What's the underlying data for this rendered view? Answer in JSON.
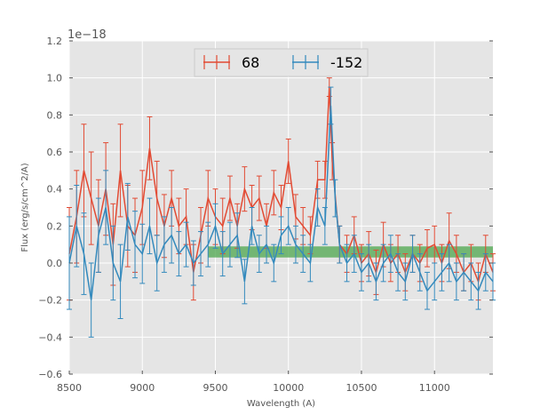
{
  "chart_data": {
    "type": "line",
    "title": "",
    "xlabel": "Wavelength (A)",
    "ylabel": "Flux (erg/s/cm^2/A)",
    "y_offset_label": "1e−18",
    "xlim": [
      8500,
      11400
    ],
    "ylim": [
      -0.6,
      1.2
    ],
    "xticks": [
      8500,
      9000,
      9500,
      10000,
      10500,
      11000
    ],
    "xtick_labels": [
      "8500",
      "9000",
      "9500",
      "10000",
      "10500",
      "11000"
    ],
    "yticks": [
      -0.6,
      -0.4,
      -0.2,
      0.0,
      0.2,
      0.4,
      0.6,
      0.8,
      1.0,
      1.2
    ],
    "ytick_labels": [
      "−0.6",
      "−0.4",
      "−0.2",
      "0.0",
      "0.2",
      "0.4",
      "0.6",
      "0.8",
      "1.0",
      "1.2"
    ],
    "grid": true,
    "legend_position": "top-center",
    "band": {
      "x_start": 9450,
      "x_end": 11400,
      "y_low": 0.03,
      "y_high": 0.09,
      "color": "#4ca64c"
    },
    "series": [
      {
        "name": "68",
        "color": "#e24a33",
        "x": [
          8500,
          8550,
          8600,
          8650,
          8700,
          8750,
          8800,
          8850,
          8900,
          8950,
          9000,
          9050,
          9100,
          9150,
          9200,
          9250,
          9300,
          9350,
          9400,
          9450,
          9500,
          9550,
          9600,
          9650,
          9700,
          9750,
          9800,
          9850,
          9900,
          9950,
          10000,
          10050,
          10100,
          10150,
          10200,
          10250,
          10280,
          10300,
          10350,
          10400,
          10450,
          10500,
          10550,
          10600,
          10650,
          10700,
          10750,
          10800,
          10850,
          10900,
          10950,
          11000,
          11050,
          11100,
          11150,
          11200,
          11250,
          11300,
          11350,
          11400
        ],
        "y": [
          0.05,
          0.25,
          0.5,
          0.35,
          0.2,
          0.4,
          0.1,
          0.5,
          0.2,
          0.15,
          0.3,
          0.62,
          0.35,
          0.2,
          0.35,
          0.2,
          0.25,
          -0.05,
          0.15,
          0.35,
          0.25,
          0.2,
          0.35,
          0.2,
          0.4,
          0.3,
          0.35,
          0.2,
          0.38,
          0.3,
          0.55,
          0.25,
          0.2,
          0.15,
          0.45,
          0.45,
          0.95,
          0.55,
          0.1,
          0.05,
          0.15,
          0.0,
          0.05,
          -0.05,
          0.1,
          0.0,
          0.05,
          -0.05,
          0.05,
          0.0,
          0.08,
          0.1,
          0.0,
          0.12,
          0.05,
          -0.05,
          0.0,
          -0.1,
          0.05,
          -0.05
        ],
        "err": [
          0.25,
          0.25,
          0.25,
          0.25,
          0.25,
          0.25,
          0.22,
          0.25,
          0.22,
          0.2,
          0.2,
          0.17,
          0.2,
          0.17,
          0.15,
          0.15,
          0.15,
          0.15,
          0.15,
          0.15,
          0.15,
          0.15,
          0.12,
          0.12,
          0.12,
          0.12,
          0.12,
          0.12,
          0.12,
          0.12,
          0.12,
          0.12,
          0.1,
          0.1,
          0.1,
          0.1,
          0.05,
          0.1,
          0.1,
          0.1,
          0.1,
          0.1,
          0.12,
          0.12,
          0.12,
          0.1,
          0.1,
          0.1,
          0.1,
          0.1,
          0.1,
          0.1,
          0.1,
          0.15,
          0.1,
          0.1,
          0.1,
          0.1,
          0.1,
          0.1
        ]
      },
      {
        "name": "-152",
        "color": "#348abd",
        "x": [
          8500,
          8550,
          8600,
          8650,
          8700,
          8750,
          8800,
          8850,
          8900,
          8950,
          9000,
          9050,
          9100,
          9150,
          9200,
          9250,
          9300,
          9350,
          9400,
          9450,
          9500,
          9550,
          9600,
          9650,
          9700,
          9750,
          9800,
          9850,
          9900,
          9950,
          10000,
          10050,
          10100,
          10150,
          10200,
          10250,
          10290,
          10320,
          10350,
          10400,
          10450,
          10500,
          10550,
          10600,
          10650,
          10700,
          10750,
          10800,
          10850,
          10900,
          10950,
          11000,
          11050,
          11100,
          11150,
          11200,
          11250,
          11300,
          11350,
          11400
        ],
        "y": [
          0.0,
          0.2,
          0.05,
          -0.2,
          0.15,
          0.3,
          0.0,
          -0.1,
          0.25,
          0.1,
          0.05,
          0.2,
          0.0,
          0.1,
          0.15,
          0.05,
          0.1,
          0.0,
          0.05,
          0.1,
          0.2,
          0.05,
          0.1,
          0.15,
          -0.1,
          0.2,
          0.05,
          0.1,
          0.0,
          0.15,
          0.2,
          0.1,
          0.05,
          0.0,
          0.3,
          0.2,
          0.85,
          0.35,
          0.1,
          0.0,
          0.05,
          -0.05,
          0.0,
          -0.1,
          0.0,
          0.05,
          -0.05,
          -0.1,
          0.05,
          -0.05,
          -0.15,
          -0.1,
          -0.05,
          0.0,
          -0.1,
          -0.05,
          -0.1,
          -0.15,
          -0.05,
          -0.1
        ],
        "err": [
          0.25,
          0.22,
          0.22,
          0.2,
          0.2,
          0.2,
          0.2,
          0.2,
          0.18,
          0.18,
          0.16,
          0.15,
          0.15,
          0.15,
          0.15,
          0.12,
          0.12,
          0.12,
          0.12,
          0.12,
          0.12,
          0.12,
          0.12,
          0.12,
          0.12,
          0.1,
          0.1,
          0.1,
          0.1,
          0.1,
          0.1,
          0.1,
          0.1,
          0.1,
          0.1,
          0.1,
          0.1,
          0.1,
          0.1,
          0.1,
          0.1,
          0.1,
          0.1,
          0.1,
          0.1,
          0.1,
          0.1,
          0.1,
          0.1,
          0.1,
          0.1,
          0.1,
          0.1,
          0.1,
          0.1,
          0.1,
          0.1,
          0.1,
          0.1,
          0.1
        ]
      }
    ],
    "colors": {
      "plot_background": "#e5e5e5",
      "grid": "#ffffff",
      "text": "#555555"
    }
  }
}
